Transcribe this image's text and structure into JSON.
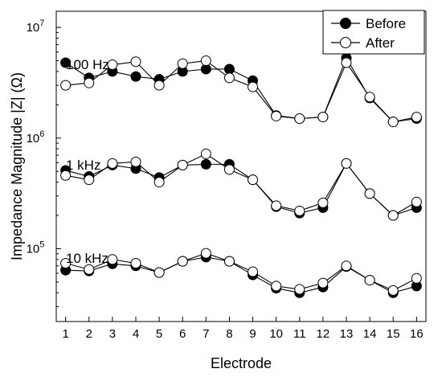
{
  "chart_data": {
    "type": "line",
    "xlabel": "Electrode",
    "ylabel": "Impedance Magnitude |Z| (Ω)",
    "y_scale": "log",
    "ylim": [
      22000,
      14000000
    ],
    "xlim": [
      0.6,
      16.4
    ],
    "x": [
      1,
      2,
      3,
      4,
      5,
      6,
      7,
      8,
      9,
      10,
      11,
      12,
      13,
      14,
      15,
      16
    ],
    "x_tick_labels": [
      "1",
      "2",
      "3",
      "4",
      "5",
      "6",
      "7",
      "8",
      "9",
      "10",
      "11",
      "12",
      "13",
      "14",
      "15",
      "16"
    ],
    "y_ticks": [
      {
        "value": 100000,
        "base": "10",
        "exp": "5"
      },
      {
        "value": 1000000,
        "base": "10",
        "exp": "6"
      },
      {
        "value": 10000000,
        "base": "10",
        "exp": "7"
      }
    ],
    "legend": {
      "position": "top-right",
      "entries": [
        {
          "name": "Before",
          "marker": "filled-circle"
        },
        {
          "name": "After",
          "marker": "open-circle"
        }
      ]
    },
    "groups": [
      {
        "label": "100 Hz",
        "series": [
          {
            "name": "Before",
            "values": [
              4800000,
              3500000,
              4000000,
              3600000,
              3400000,
              4000000,
              4200000,
              4200000,
              3300000,
              1600000,
              1500000,
              1550000,
              5300000,
              2300000,
              1400000,
              1500000
            ]
          },
          {
            "name": "After",
            "values": [
              3000000,
              3150000,
              4600000,
              4900000,
              3000000,
              4700000,
              5000000,
              3500000,
              2900000,
              1580000,
              1500000,
              1550000,
              4800000,
              2350000,
              1400000,
              1550000
            ]
          }
        ]
      },
      {
        "label": "1 kHz",
        "series": [
          {
            "name": "Before",
            "values": [
              510000,
              450000,
              570000,
              530000,
              440000,
              570000,
              580000,
              580000,
              420000,
              240000,
              210000,
              235000,
              590000,
              315000,
              200000,
              235000
            ]
          },
          {
            "name": "After",
            "values": [
              460000,
              420000,
              590000,
              610000,
              400000,
              570000,
              720000,
              520000,
              420000,
              245000,
              220000,
              260000,
              590000,
              315000,
              200000,
              265000
            ]
          }
        ]
      },
      {
        "label": "10 kHz",
        "series": [
          {
            "name": "Before",
            "values": [
              64000,
              63000,
              73000,
              70000,
              61000,
              77000,
              84000,
              77000,
              58000,
              44000,
              40000,
              45000,
              69000,
              52000,
              40000,
              46000
            ]
          },
          {
            "name": "After",
            "values": [
              74000,
              65000,
              80000,
              74000,
              61000,
              77000,
              91000,
              77000,
              62000,
              46000,
              43000,
              49000,
              70000,
              52000,
              42000,
              54000
            ]
          }
        ]
      }
    ],
    "colors": {
      "line": "#000000",
      "open_fill": "#ffffff",
      "filled": "#000000"
    }
  }
}
